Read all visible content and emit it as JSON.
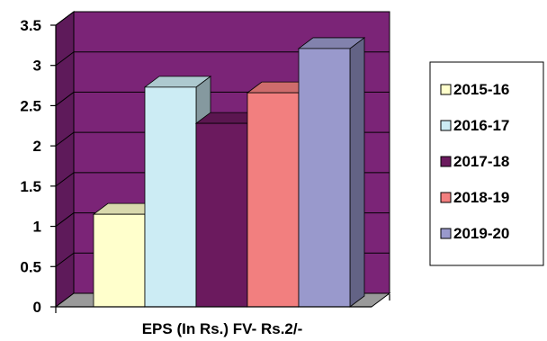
{
  "chart_data": {
    "type": "bar",
    "xlabel": "EPS (In Rs.) FV- Rs.2/-",
    "ylabel": "",
    "ylim": [
      0,
      3.5
    ],
    "y_ticks": [
      "0",
      "0.5",
      "1",
      "1.5",
      "2",
      "2.5",
      "3",
      "3.5"
    ],
    "grid": true,
    "legend_position": "right",
    "series": [
      {
        "name": "2015-16",
        "value": 1.15,
        "color": "#FFFFCC"
      },
      {
        "name": "2016-17",
        "value": 2.73,
        "color": "#CCECF4"
      },
      {
        "name": "2017-18",
        "value": 2.28,
        "color": "#6B1A5E"
      },
      {
        "name": "2018-19",
        "value": 2.66,
        "color": "#F27F7F"
      },
      {
        "name": "2019-20",
        "value": 3.21,
        "color": "#9999CC"
      }
    ],
    "colors": {
      "plot_wall": "#7B2477",
      "plot_side": "#5E1A5A",
      "floor": "#9A9A9A"
    }
  }
}
